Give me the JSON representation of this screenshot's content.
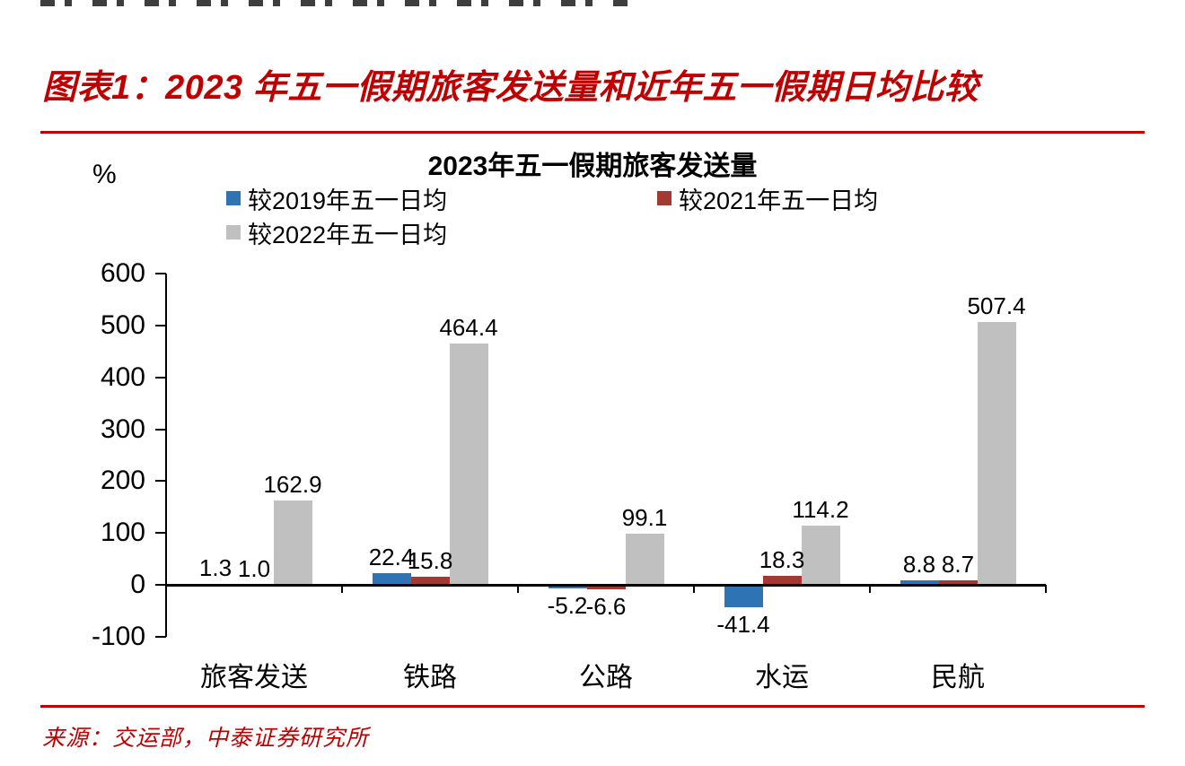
{
  "page": {
    "figure_title": "图表1：2023 年五一假期旅客发送量和近年五一假期日均比较",
    "source_text": "来源：交运部，中泰证券研究所",
    "accent_color": "#C00000"
  },
  "chart_data": {
    "type": "bar",
    "title": "2023年五一假期旅客发送量",
    "unit_label": "%",
    "categories": [
      "旅客发送",
      "铁路",
      "公路",
      "水运",
      "民航"
    ],
    "series": [
      {
        "name": "较2019年五一日均",
        "color": "#2E74B5",
        "values": [
          1.3,
          22.4,
          -5.2,
          -41.4,
          8.8
        ]
      },
      {
        "name": "较2021年五一日均",
        "color": "#A43832",
        "values": [
          1.0,
          15.8,
          -6.6,
          18.3,
          8.7
        ]
      },
      {
        "name": "较2022年五一日均",
        "color": "#C0C0C0",
        "values": [
          162.9,
          464.4,
          99.1,
          114.2,
          507.4
        ]
      }
    ],
    "ylim": [
      -100,
      600
    ],
    "ytick_step": 100,
    "yticks": [
      600,
      500,
      400,
      300,
      200,
      100,
      0,
      -100
    ],
    "legend_position": "top",
    "grid": false
  }
}
